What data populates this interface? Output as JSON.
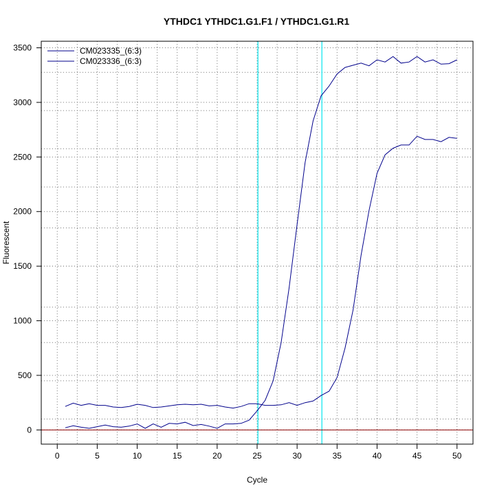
{
  "chart_data": {
    "type": "line",
    "title": "YTHDC1  YTHDC1.G1.F1 / YTHDC1.G1.R1",
    "xlabel": "Cycle",
    "ylabel": "Fluorescent",
    "xlim": [
      -2,
      52
    ],
    "ylim": [
      -130,
      3560
    ],
    "xticks": [
      0,
      5,
      10,
      15,
      20,
      25,
      30,
      35,
      40,
      45,
      50
    ],
    "yticks": [
      0,
      500,
      1000,
      1500,
      2000,
      2500,
      3000,
      3500
    ],
    "grid": true,
    "grid_x": [
      2.5,
      7.5,
      12.5,
      17.5,
      22.5,
      27.5,
      32.5,
      37.5,
      42.5,
      47.5
    ],
    "grid_y": [
      100,
      450,
      800,
      1125,
      1500,
      1850,
      2225,
      2575,
      2925,
      3275
    ],
    "legend_position": "top-left",
    "threshold_lines": [
      25.1,
      33.1
    ],
    "baseline": 0,
    "colors": {
      "series": "#00008B",
      "threshold": "#00E5EE",
      "baseline": "#8B0000",
      "grid": "#777777"
    },
    "x": [
      1,
      2,
      3,
      4,
      5,
      6,
      7,
      8,
      9,
      10,
      11,
      12,
      13,
      14,
      15,
      16,
      17,
      18,
      19,
      20,
      21,
      22,
      23,
      24,
      25,
      26,
      27,
      28,
      29,
      30,
      31,
      32,
      33,
      34,
      35,
      36,
      37,
      38,
      39,
      40,
      41,
      42,
      43,
      44,
      45,
      46,
      47,
      48,
      49,
      50
    ],
    "series": [
      {
        "name": "CM023335_(6:3)",
        "values": [
          20,
          38,
          25,
          15,
          30,
          45,
          30,
          25,
          35,
          55,
          15,
          55,
          25,
          60,
          55,
          70,
          40,
          50,
          35,
          15,
          55,
          55,
          60,
          90,
          175,
          270,
          450,
          800,
          1300,
          1880,
          2450,
          2830,
          3060,
          3150,
          3260,
          3320,
          3340,
          3360,
          3335,
          3390,
          3370,
          3420,
          3360,
          3370,
          3420,
          3370,
          3390,
          3350,
          3355,
          3390
        ]
      },
      {
        "name": "CM023336_(6:3)",
        "values": [
          215,
          245,
          225,
          240,
          225,
          225,
          210,
          205,
          215,
          235,
          225,
          205,
          210,
          220,
          230,
          235,
          230,
          235,
          220,
          225,
          210,
          200,
          215,
          240,
          240,
          225,
          225,
          230,
          250,
          225,
          250,
          265,
          315,
          355,
          480,
          750,
          1100,
          1600,
          2010,
          2350,
          2520,
          2580,
          2610,
          2610,
          2690,
          2660,
          2660,
          2640,
          2680,
          2670
        ]
      }
    ]
  }
}
